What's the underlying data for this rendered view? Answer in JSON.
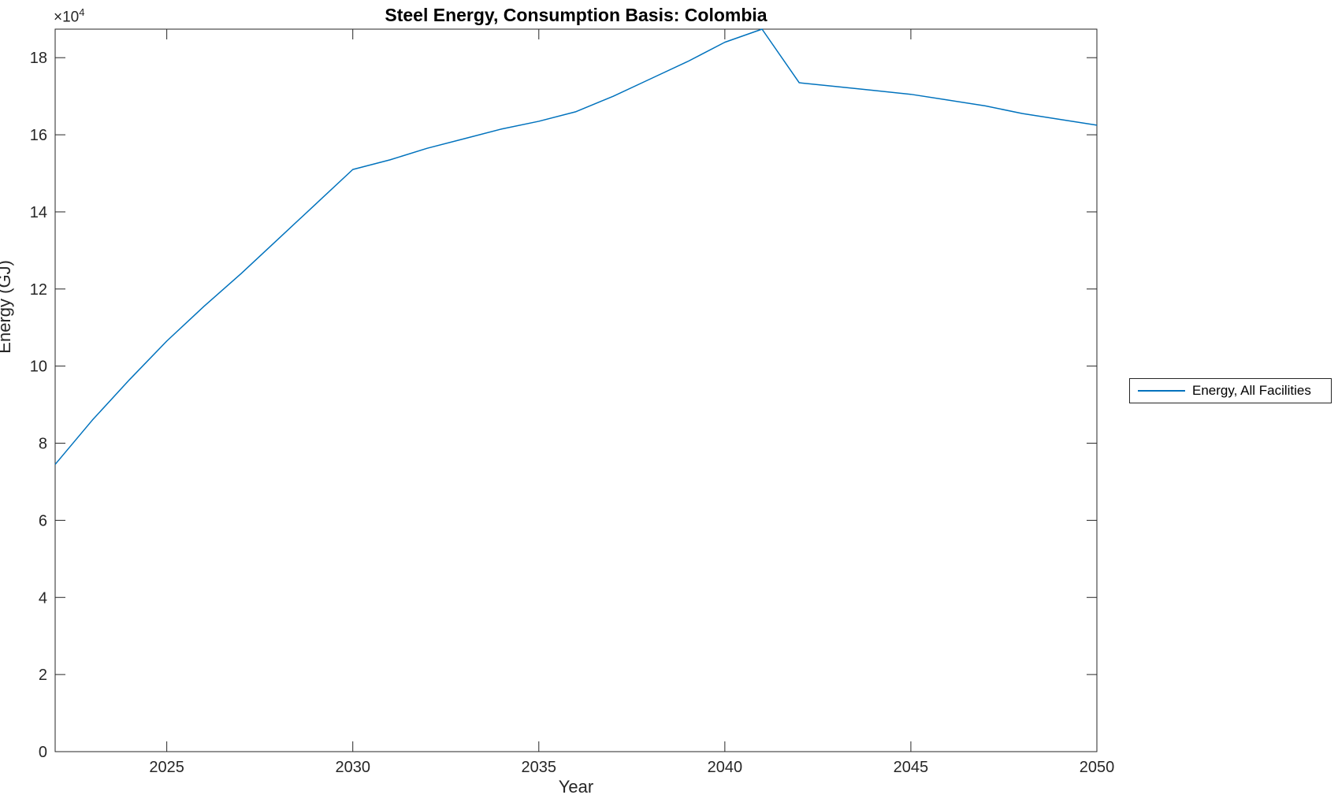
{
  "figure": {
    "title": "Steel Energy, Consumption Basis: Colombia",
    "xlabel": "Year",
    "ylabel": "Energy (GJ)",
    "y_axis_multiplier_base": "×10",
    "y_axis_multiplier_exponent": "4"
  },
  "legend": {
    "entries": [
      {
        "label": "Energy, All Facilities",
        "color": "#0072BD"
      }
    ]
  },
  "colors": {
    "line": "#0072BD",
    "axis": "#262626",
    "tick_label": "#262626",
    "title": "#000000",
    "background": "#FFFFFF"
  },
  "chart_data": {
    "type": "line",
    "title": "Steel Energy, Consumption Basis: Colombia",
    "xlabel": "Year",
    "ylabel": "Energy (GJ)",
    "x": [
      2022,
      2023,
      2024,
      2025,
      2026,
      2027,
      2028,
      2029,
      2030,
      2031,
      2032,
      2033,
      2034,
      2035,
      2036,
      2037,
      2038,
      2039,
      2040,
      2041,
      2042,
      2043,
      2044,
      2045,
      2046,
      2047,
      2048,
      2049,
      2050
    ],
    "series": [
      {
        "name": "Energy, All Facilities",
        "color": "#0072BD",
        "values": [
          74500,
          86000,
          96500,
          106500,
          115500,
          124000,
          133000,
          142000,
          151000,
          153500,
          156500,
          159000,
          161500,
          163500,
          166000,
          170000,
          174500,
          179000,
          184000,
          187400,
          173500,
          172500,
          171500,
          170500,
          169000,
          167500,
          165500,
          164000,
          162500
        ]
      }
    ],
    "xlim": [
      2022,
      2050
    ],
    "ylim": [
      0,
      187400
    ],
    "xticks": [
      2025,
      2030,
      2035,
      2040,
      2045,
      2050
    ],
    "yticks": [
      0,
      20000,
      40000,
      60000,
      80000,
      100000,
      120000,
      140000,
      160000,
      180000
    ],
    "ytick_labels": [
      "0",
      "2",
      "4",
      "6",
      "8",
      "10",
      "12",
      "14",
      "16",
      "18"
    ],
    "ytick_scale_label": "×10^4",
    "grid": false,
    "box": true,
    "legend_position": "outside-right"
  }
}
